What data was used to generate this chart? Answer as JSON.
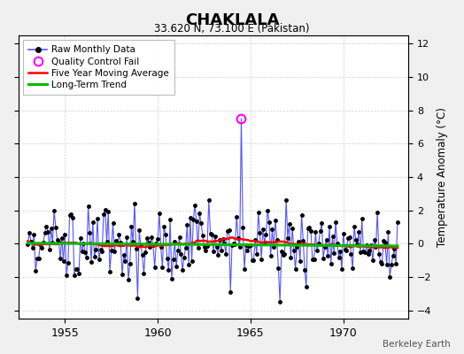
{
  "title": "CHAKLALA",
  "subtitle": "33.620 N, 73.100 E (Pakistan)",
  "ylabel": "Temperature Anomaly (°C)",
  "credit": "Berkeley Earth",
  "ylim": [
    -4.5,
    12.5
  ],
  "yticks": [
    -4,
    -2,
    0,
    2,
    4,
    6,
    8,
    10,
    12
  ],
  "xlim": [
    1952.5,
    1973.5
  ],
  "xticks": [
    1955,
    1960,
    1965,
    1970
  ],
  "background_color": "#f0f0f0",
  "plot_bg_color": "#ffffff",
  "line_color": "#5555ff",
  "marker_color": "#000000",
  "moving_avg_color": "#ff0000",
  "trend_color": "#00bb00",
  "qc_fail_color": "#ff00ff",
  "grid_color": "#cccccc",
  "spike_value": 7.5,
  "spike_year": 1964.5
}
